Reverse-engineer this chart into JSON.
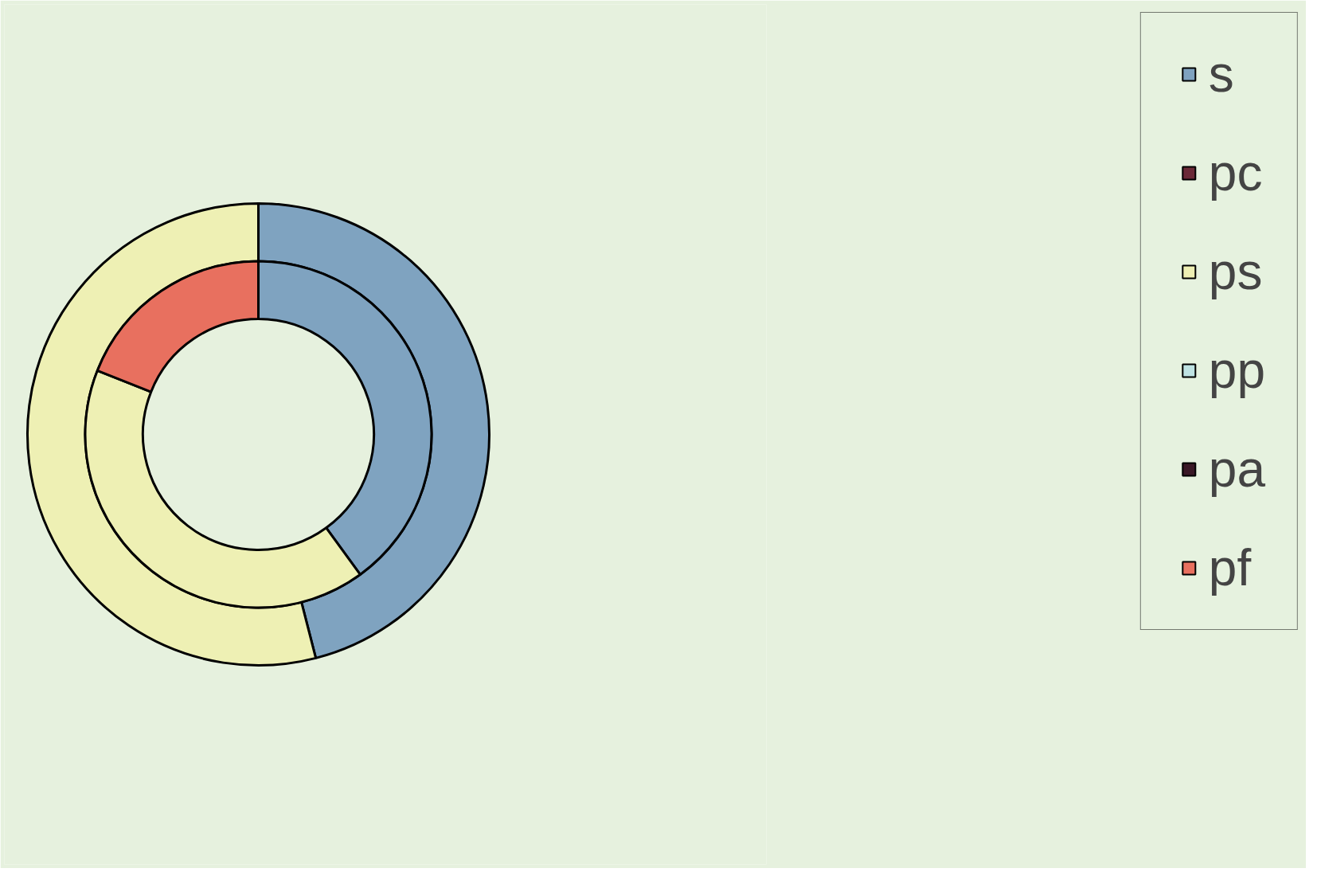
{
  "chart_data": {
    "type": "donut",
    "categories": [
      "s",
      "pc",
      "ps",
      "pp",
      "pa",
      "pf"
    ],
    "colors": [
      "#7fa3c0",
      "#6b2a38",
      "#eef0b4",
      "#bfe3e3",
      "#3a1826",
      "#e8705f"
    ],
    "series": [
      {
        "values": [
          46,
          0,
          54,
          0,
          0,
          0
        ]
      },
      {
        "values": [
          40,
          0,
          41,
          0,
          0,
          19
        ]
      }
    ],
    "legend": "right"
  }
}
